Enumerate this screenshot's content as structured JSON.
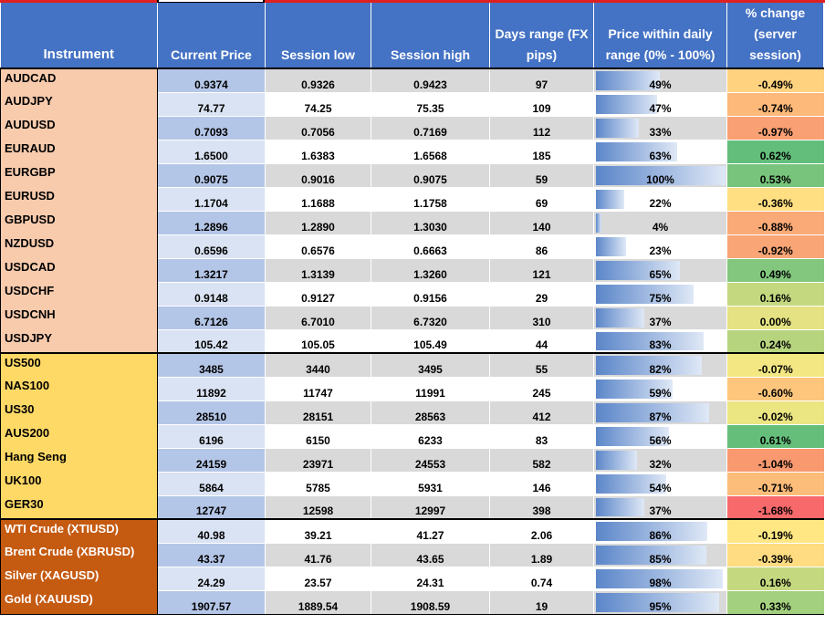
{
  "headers": {
    "instrument": "Instrument",
    "current_price": "Current Price",
    "session_low": "Session  low",
    "session_high": "Session high",
    "days_range": "Days range (FX pips)",
    "price_within": "Price within daily range (0% - 100%)",
    "pct_change": "% change (server session)"
  },
  "colors": {
    "header_bg": "#4472c4",
    "fx_group": "#f8cbad",
    "index_group": "#ffd966",
    "commodity_group": "#c55a11",
    "bar": "#5b86c9"
  },
  "rows": [
    {
      "group": "fx",
      "name": "AUDCAD",
      "price": "0.9374",
      "low": "0.9326",
      "high": "0.9423",
      "range": "97",
      "pos": "49%",
      "pos_value": 0.49,
      "change": "-0.49%",
      "change_color": "#ffd27f"
    },
    {
      "group": "fx",
      "name": "AUDJPY",
      "price": "74.77",
      "low": "74.25",
      "high": "75.35",
      "range": "109",
      "pos": "47%",
      "pos_value": 0.47,
      "change": "-0.74%",
      "change_color": "#fcb97a"
    },
    {
      "group": "fx",
      "name": "AUDUSD",
      "price": "0.7093",
      "low": "0.7056",
      "high": "0.7169",
      "range": "112",
      "pos": "33%",
      "pos_value": 0.33,
      "change": "-0.97%",
      "change_color": "#f9a074"
    },
    {
      "group": "fx",
      "name": "EURAUD",
      "price": "1.6500",
      "low": "1.6383",
      "high": "1.6568",
      "range": "185",
      "pos": "63%",
      "pos_value": 0.63,
      "change": "0.62%",
      "change_color": "#63be7b"
    },
    {
      "group": "fx",
      "name": "EURGBP",
      "price": "0.9075",
      "low": "0.9016",
      "high": "0.9075",
      "range": "59",
      "pos": "100%",
      "pos_value": 1.0,
      "change": "0.53%",
      "change_color": "#78c47c"
    },
    {
      "group": "fx",
      "name": "EURUSD",
      "price": "1.1704",
      "low": "1.1688",
      "high": "1.1758",
      "range": "69",
      "pos": "22%",
      "pos_value": 0.22,
      "change": "-0.36%",
      "change_color": "#ffdf82"
    },
    {
      "group": "fx",
      "name": "GBPUSD",
      "price": "1.2896",
      "low": "1.2890",
      "high": "1.3030",
      "range": "140",
      "pos": "4%",
      "pos_value": 0.04,
      "change": "-0.88%",
      "change_color": "#faaa76"
    },
    {
      "group": "fx",
      "name": "NZDUSD",
      "price": "0.6596",
      "low": "0.6576",
      "high": "0.6663",
      "range": "86",
      "pos": "23%",
      "pos_value": 0.23,
      "change": "-0.92%",
      "change_color": "#f9a575"
    },
    {
      "group": "fx",
      "name": "USDCAD",
      "price": "1.3217",
      "low": "1.3139",
      "high": "1.3260",
      "range": "121",
      "pos": "65%",
      "pos_value": 0.65,
      "change": "0.49%",
      "change_color": "#82c77d"
    },
    {
      "group": "fx",
      "name": "USDCHF",
      "price": "0.9148",
      "low": "0.9127",
      "high": "0.9156",
      "range": "29",
      "pos": "75%",
      "pos_value": 0.75,
      "change": "0.16%",
      "change_color": "#c4d97f"
    },
    {
      "group": "fx",
      "name": "USDCNH",
      "price": "6.7126",
      "low": "6.7010",
      "high": "6.7320",
      "range": "310",
      "pos": "37%",
      "pos_value": 0.37,
      "change": "0.00%",
      "change_color": "#e4e282"
    },
    {
      "group": "fx",
      "name": "USDJPY",
      "price": "105.42",
      "low": "105.05",
      "high": "105.49",
      "range": "44",
      "pos": "83%",
      "pos_value": 0.83,
      "change": "0.24%",
      "change_color": "#b6d47e"
    },
    {
      "group": "idx",
      "name": "US500",
      "price": "3485",
      "low": "3440",
      "high": "3495",
      "range": "55",
      "pos": "82%",
      "pos_value": 0.82,
      "change": "-0.07%",
      "change_color": "#f2e783"
    },
    {
      "group": "idx",
      "name": "NAS100",
      "price": "11892",
      "low": "11747",
      "high": "11991",
      "range": "245",
      "pos": "59%",
      "pos_value": 0.59,
      "change": "-0.60%",
      "change_color": "#fdc67c"
    },
    {
      "group": "idx",
      "name": "US30",
      "price": "28510",
      "low": "28151",
      "high": "28563",
      "range": "412",
      "pos": "87%",
      "pos_value": 0.87,
      "change": "-0.02%",
      "change_color": "#ebe582"
    },
    {
      "group": "idx",
      "name": "AUS200",
      "price": "6196",
      "low": "6150",
      "high": "6233",
      "range": "83",
      "pos": "56%",
      "pos_value": 0.56,
      "change": "0.61%",
      "change_color": "#65bf7b"
    },
    {
      "group": "idx",
      "name": "Hang Seng",
      "price": "24159",
      "low": "23971",
      "high": "24553",
      "range": "582",
      "pos": "32%",
      "pos_value": 0.32,
      "change": "-1.04%",
      "change_color": "#f8996f"
    },
    {
      "group": "idx",
      "name": "UK100",
      "price": "5864",
      "low": "5785",
      "high": "5931",
      "range": "146",
      "pos": "54%",
      "pos_value": 0.54,
      "change": "-0.71%",
      "change_color": "#fcbc7a"
    },
    {
      "group": "idx",
      "name": "GER30",
      "price": "12747",
      "low": "12598",
      "high": "12997",
      "range": "398",
      "pos": "37%",
      "pos_value": 0.37,
      "change": "-1.68%",
      "change_color": "#f8696b"
    },
    {
      "group": "com",
      "name": "WTI Crude (XTIUSD)",
      "price": "40.98",
      "low": "39.21",
      "high": "41.27",
      "range": "2.06",
      "pos": "86%",
      "pos_value": 0.86,
      "change": "-0.19%",
      "change_color": "#ffe883"
    },
    {
      "group": "com",
      "name": "Brent  Crude (XBRUSD)",
      "price": "43.37",
      "low": "41.76",
      "high": "43.65",
      "range": "1.89",
      "pos": "85%",
      "pos_value": 0.85,
      "change": "-0.39%",
      "change_color": "#ffdc81"
    },
    {
      "group": "com",
      "name": "Silver  (XAGUSD)",
      "price": "24.29",
      "low": "23.57",
      "high": "24.31",
      "range": "0.74",
      "pos": "98%",
      "pos_value": 0.98,
      "change": "0.16%",
      "change_color": "#c4d97f"
    },
    {
      "group": "com",
      "name": "Gold (XAUUSD)",
      "price": "1907.57",
      "low": "1889.54",
      "high": "1908.59",
      "range": "19",
      "pos": "95%",
      "pos_value": 0.95,
      "change": "0.33%",
      "change_color": "#a3d07e"
    }
  ]
}
